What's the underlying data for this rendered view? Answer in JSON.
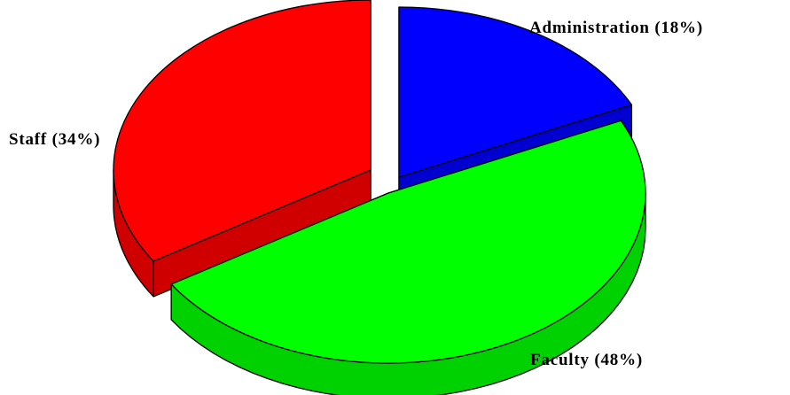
{
  "chart_data": {
    "type": "pie",
    "style": "3d-exploded",
    "title": "",
    "slices": [
      {
        "label": "Administration (18%)",
        "name": "Administration",
        "value": 18,
        "color": "#0000FF"
      },
      {
        "label": "Faculty (48%)",
        "name": "Faculty",
        "value": 48,
        "color": "#00FF00"
      },
      {
        "label": "Staff (34%)",
        "name": "Staff",
        "value": 34,
        "color": "#FF0000"
      }
    ],
    "legend": "none"
  }
}
